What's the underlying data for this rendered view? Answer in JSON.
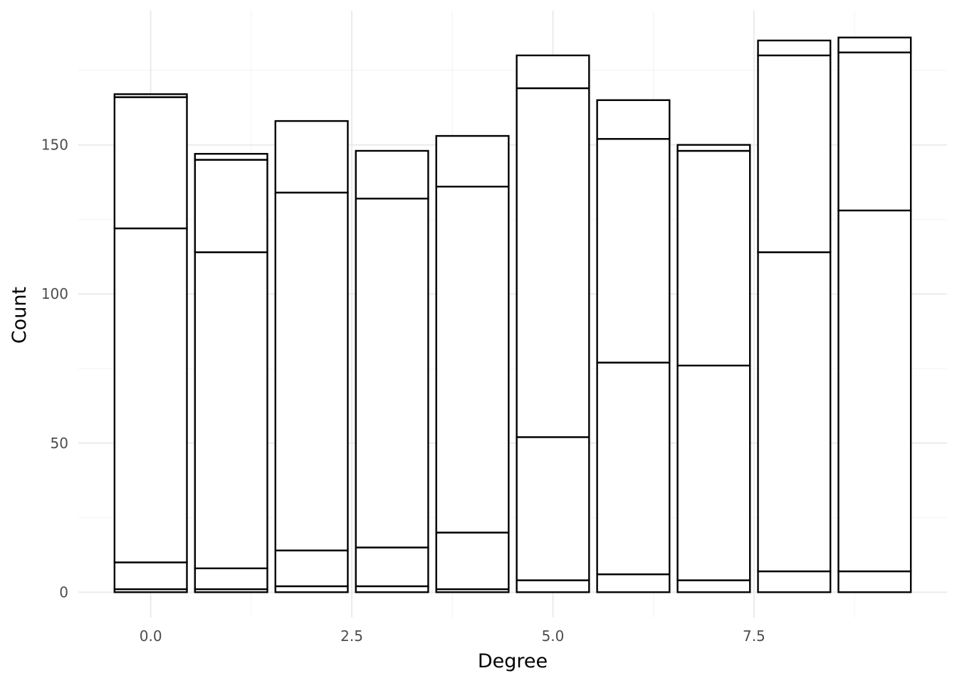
{
  "chart_data": {
    "type": "bar",
    "stacked": true,
    "xlabel": "Degree",
    "ylabel": "Count",
    "xlim": [
      -0.9,
      9.9
    ],
    "ylim": [
      -8.5,
      195
    ],
    "x_ticks": [
      {
        "value": 0.0,
        "label": "0.0"
      },
      {
        "value": 2.5,
        "label": "2.5"
      },
      {
        "value": 5.0,
        "label": "5.0"
      },
      {
        "value": 7.5,
        "label": "7.5"
      }
    ],
    "y_ticks": [
      {
        "value": 0,
        "label": "0"
      },
      {
        "value": 50,
        "label": "50"
      },
      {
        "value": 100,
        "label": "100"
      },
      {
        "value": 150,
        "label": "150"
      }
    ],
    "grid": true,
    "legend": "none",
    "bar_fill": "#ffffff",
    "bar_outline": "#000000",
    "categories": [
      0,
      1,
      2,
      3,
      4,
      5,
      6,
      7,
      8,
      9
    ],
    "segments": [
      [
        1,
        9,
        112,
        44,
        1
      ],
      [
        1,
        7,
        106,
        31,
        2
      ],
      [
        2,
        12,
        120,
        24
      ],
      [
        2,
        13,
        117,
        16
      ],
      [
        1,
        19,
        116,
        17
      ],
      [
        4,
        48,
        117,
        11
      ],
      [
        6,
        71,
        75,
        13
      ],
      [
        4,
        72,
        72,
        2
      ],
      [
        7,
        107,
        66,
        5
      ],
      [
        7,
        121,
        53,
        5
      ]
    ],
    "totals": [
      167,
      147,
      158,
      148,
      153,
      180,
      165,
      150,
      185,
      186
    ]
  }
}
